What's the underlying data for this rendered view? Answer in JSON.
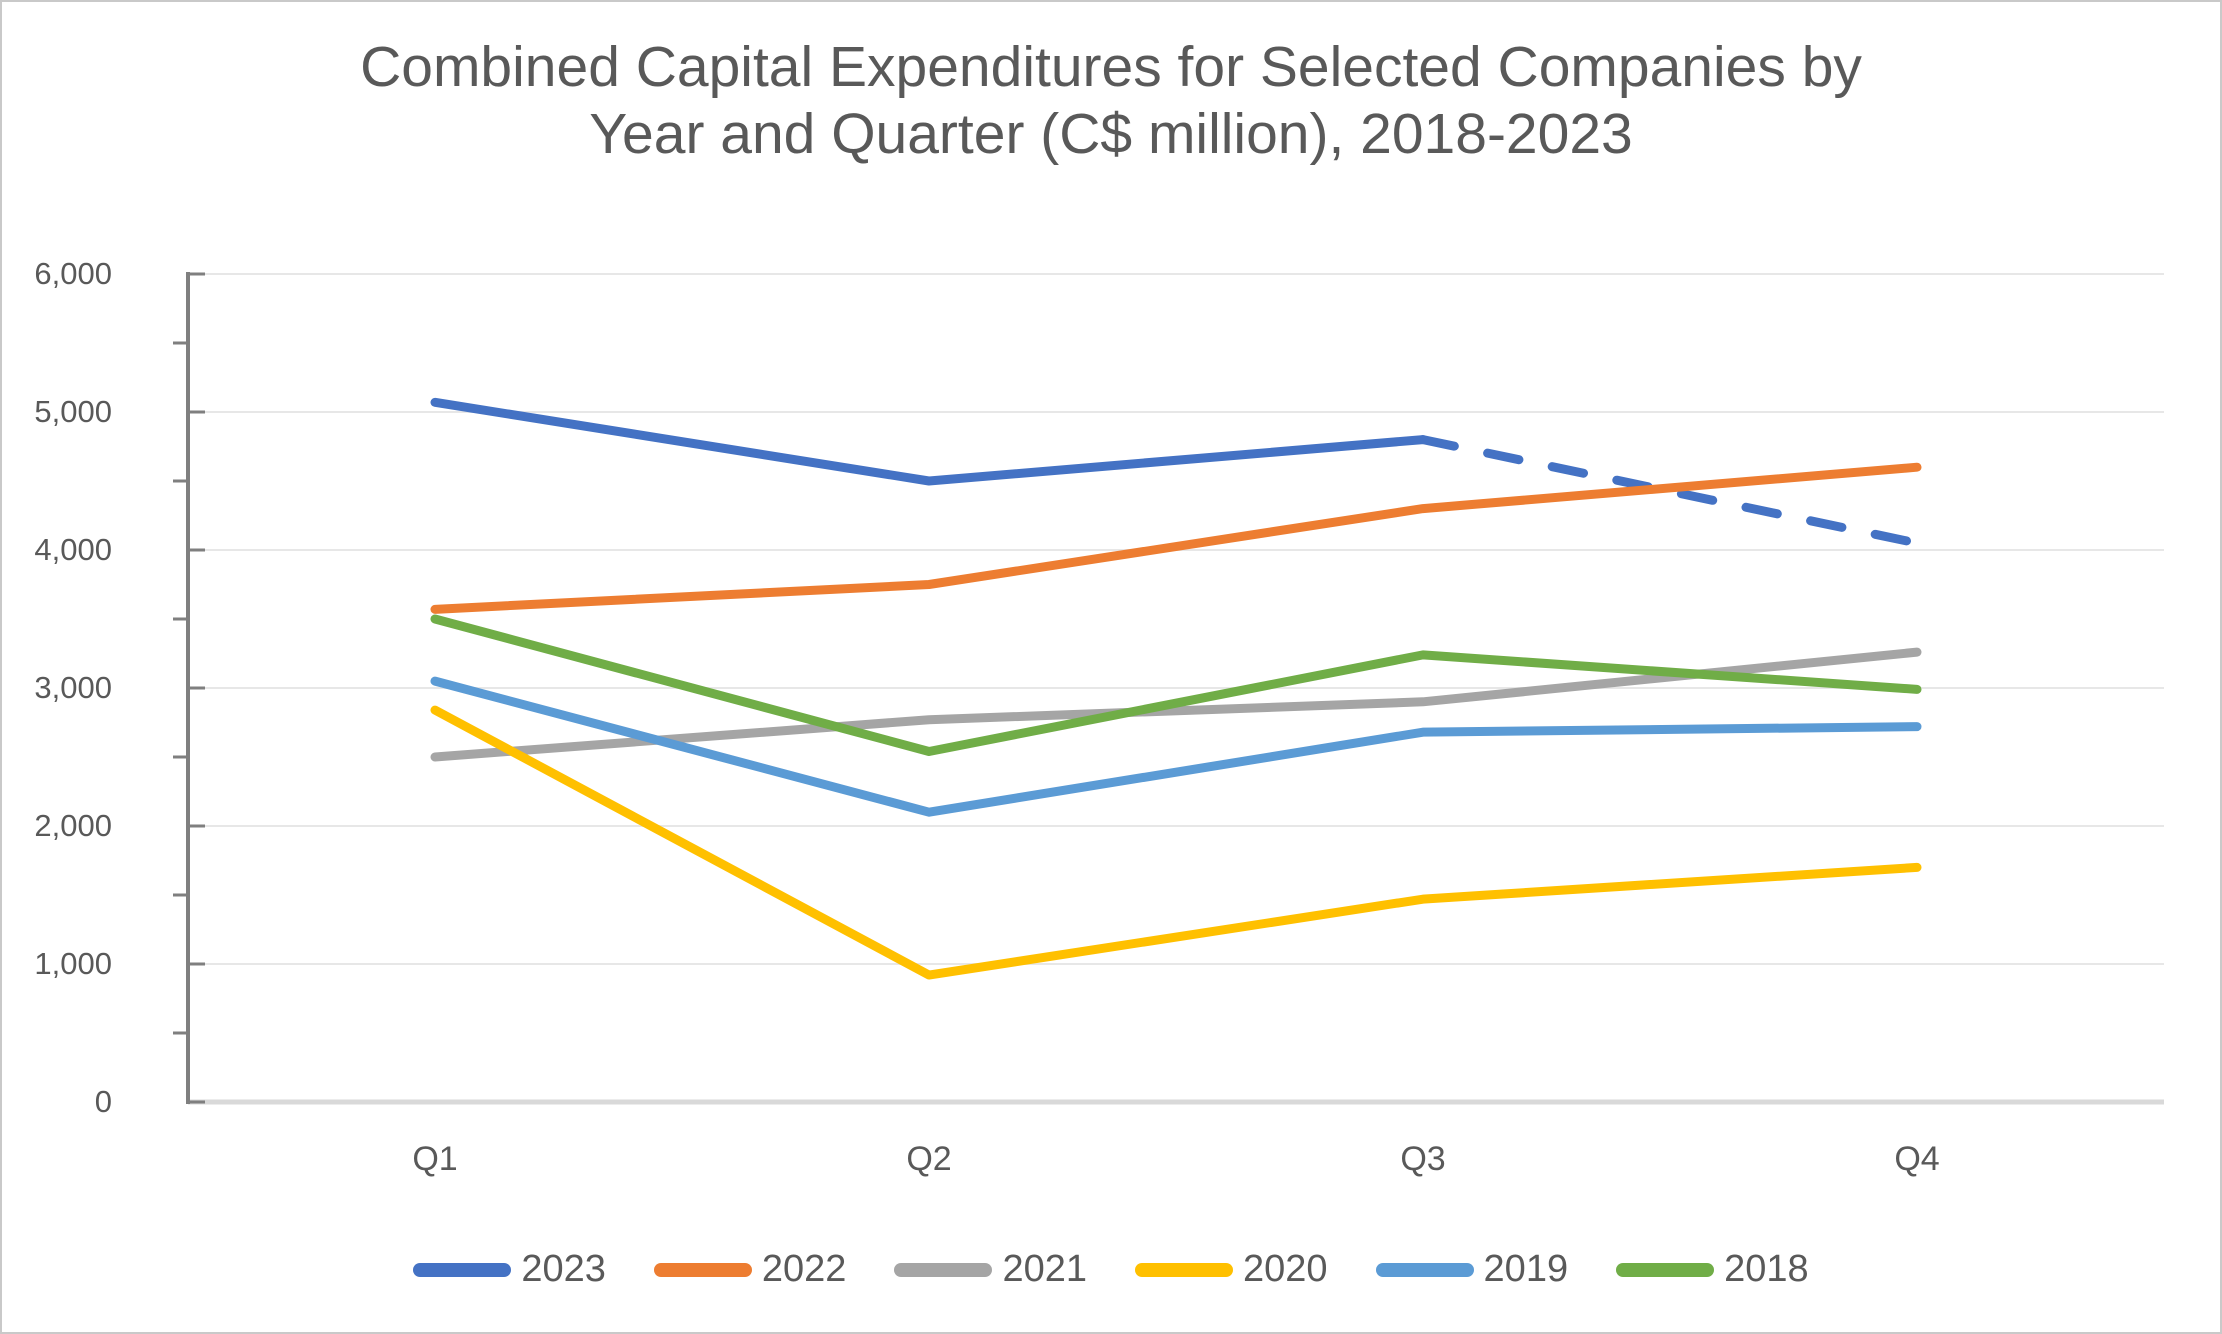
{
  "page": {
    "background": "#ffffff",
    "border_color": "#c9c9c9"
  },
  "title": {
    "line1": "Combined Capital Expenditures for Selected Companies by",
    "line2": "Year and Quarter (C$ million), 2018-2023",
    "full": "Combined Capital Expenditures for Selected Companies by Year and Quarter (C$ million), 2018-2023",
    "color": "#595959"
  },
  "chart_data": {
    "type": "line",
    "title": "Combined Capital Expenditures for Selected Companies by Year and Quarter (C$ million), 2018-2023",
    "xlabel": "",
    "ylabel": "",
    "categories": [
      "Q1",
      "Q2",
      "Q3",
      "Q4"
    ],
    "series": [
      {
        "name": "2023",
        "color": "#4472C4",
        "values": [
          5070,
          4500,
          4800,
          4050
        ],
        "dashed_from_index": 2,
        "note": "segment Q3 to Q4 drawn as dashed line"
      },
      {
        "name": "2022",
        "color": "#ED7D31",
        "values": [
          3570,
          3750,
          4300,
          4600
        ],
        "dashed_from_index": null
      },
      {
        "name": "2021",
        "color": "#A5A5A5",
        "values": [
          2500,
          2770,
          2900,
          3260
        ],
        "dashed_from_index": null
      },
      {
        "name": "2020",
        "color": "#FFC000",
        "values": [
          2840,
          920,
          1470,
          1700
        ],
        "dashed_from_index": null
      },
      {
        "name": "2019",
        "color": "#5B9BD5",
        "values": [
          3050,
          2100,
          2680,
          2720
        ],
        "dashed_from_index": null
      },
      {
        "name": "2018",
        "color": "#70AD47",
        "values": [
          3500,
          2540,
          3240,
          2990
        ],
        "dashed_from_index": null
      }
    ],
    "ylim": [
      0,
      6000
    ],
    "ytick_step": 1000,
    "yminor_tick_step": 500,
    "ytick_labels_top_to_bottom": [
      "6,000",
      "5,000",
      "4,000",
      "3,000",
      "2,000",
      "1,000",
      "0"
    ],
    "grid": "horizontal-only",
    "legend_position": "bottom",
    "styles": {
      "gridline_color": "#e7e7e7",
      "axis_line_color": "#7f7f7f",
      "baseline_color": "#d9d9d9",
      "label_color": "#595959",
      "line_width": 9
    }
  }
}
